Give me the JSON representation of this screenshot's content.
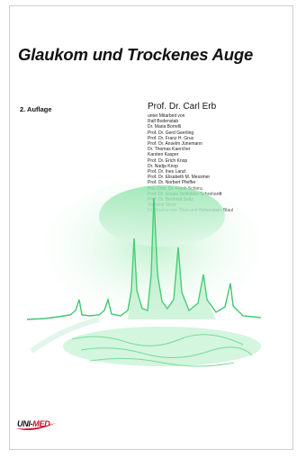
{
  "cover": {
    "title": "Glaukom und Trockenes Auge",
    "edition": "2. Auflage",
    "author": "Prof. Dr. Carl Erb",
    "contributors_intro": "unter Mitarbeit von",
    "contributors": [
      "Ralf Bodenstab",
      "Dr. Maria Borrelli",
      "Prof. Dr. Gerd Geerling",
      "Prof. Dr. Franz H. Grus",
      "Prof. Dr. Anselm Jünemann",
      "Dr. Thomas Kaercher",
      "Karsten Kasper",
      "Prof. Dr. Erich Knop",
      "Dr. Nadja Knop",
      "Prof. Dr. Ines Lanzl",
      "Prof. Dr. Elisabeth M. Messmer",
      "Prof. Dr. Norbert Pfeiffer",
      "Priv.-Doz. Dr. Frank Schirra",
      "Prof. Dr. Ursula Schlötzer-Schrehardt",
      "Prof. Dr. Berthold Seitz",
      "Stefanie Slysz",
      "Dr. Nadine von Thun und Hohenstein-Blaul"
    ],
    "publisher_logo": "UNI-MED",
    "logo_part_1": "UNI-",
    "logo_part_2": "MED",
    "accent_color": "#5fd48a",
    "logo_color": "#c8102e"
  }
}
